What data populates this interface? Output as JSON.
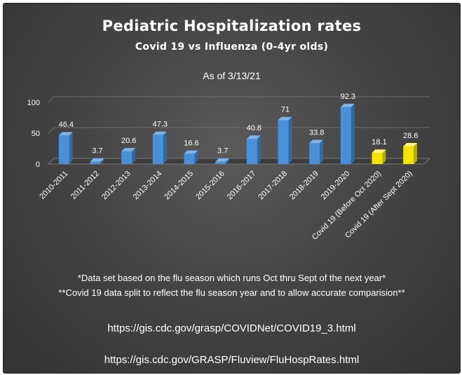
{
  "slide": {
    "as_of": "As of 3/13/21",
    "footnote_1": "*Data set based on the flu season which runs Oct thru Sept of the next year*",
    "footnote_2": "**Covid 19 data split to reflect the flu season year and to allow accurate comparision**",
    "source_link_1": "https://gis.cdc.gov/grasp/COVIDNet/COVID19_3.html",
    "source_link_2": "https://gis.cdc.gov/GRASP/Fluview/FluHospRates.html"
  },
  "colors": {
    "background": "#454545",
    "influenza_bar": "#4a90d9",
    "covid_bar": "#f2e600",
    "text": "#ffffff",
    "gridline": "#6e6e6e"
  },
  "chart_data": {
    "type": "bar",
    "title": "Pediatric Hospitalization rates",
    "subtitle": "Covid 19 vs Influenza (0-4yr olds)",
    "categories": [
      "2010-2011",
      "2011-2012",
      "2012-2013",
      "2013-2014",
      "2014-2015",
      "2015-2016",
      "2016-2017",
      "2017-2018",
      "2018-2019",
      "2019-2020",
      "Covid 19 (Before Oct 2020)",
      "Covid 19 (After Sept 2020)"
    ],
    "values": [
      46.4,
      3.7,
      20.6,
      47.3,
      16.6,
      3.7,
      40.8,
      71,
      33.8,
      92.3,
      18.1,
      28.6
    ],
    "value_labels": [
      "46.4",
      "3.7",
      "20.6",
      "47.3",
      "16.6",
      "3.7",
      "40.8",
      "71",
      "33.8",
      "92.3",
      "18.1",
      "28.6"
    ],
    "bar_colors": [
      "#4a90d9",
      "#4a90d9",
      "#4a90d9",
      "#4a90d9",
      "#4a90d9",
      "#4a90d9",
      "#4a90d9",
      "#4a90d9",
      "#4a90d9",
      "#4a90d9",
      "#f2e600",
      "#f2e600"
    ],
    "yticks": [
      "0",
      "50",
      "100"
    ],
    "ytick_values": [
      0,
      50,
      100
    ],
    "ylim": [
      0,
      100
    ],
    "grid": true,
    "legend": "none",
    "xlabel": "",
    "ylabel": ""
  }
}
